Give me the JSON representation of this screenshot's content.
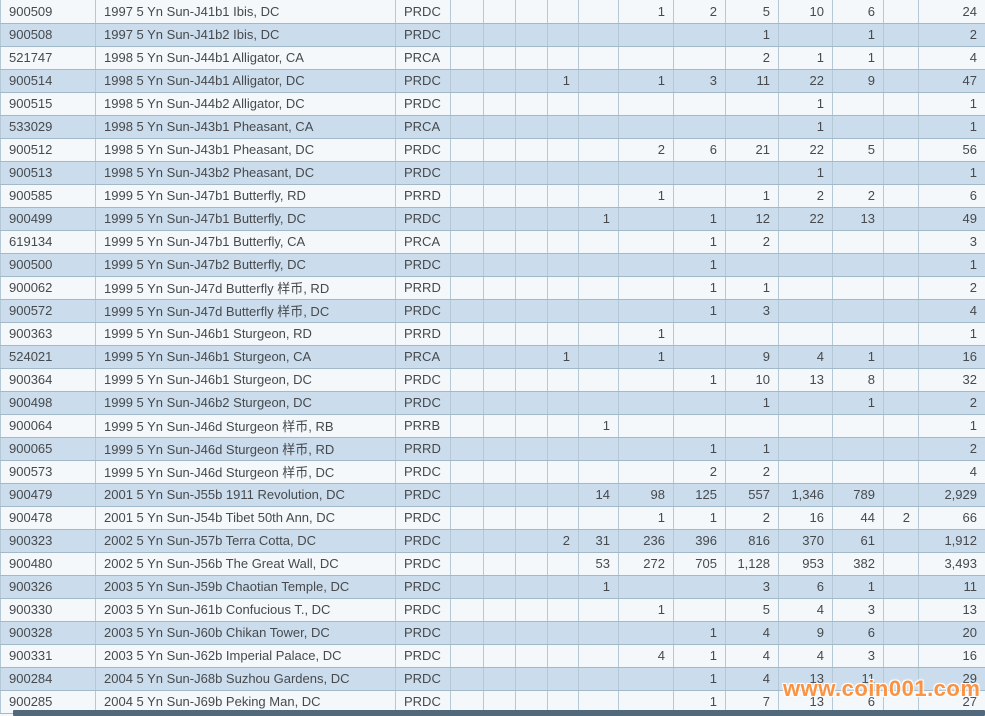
{
  "watermark": "www.coin001.com",
  "colors": {
    "row_light": "#f4f8fb",
    "row_alternate": "#cbdded",
    "grid_vertical": "#b5c8d6",
    "grid_horizontal": "#a2b9c9",
    "id_link_text": "#ad6c44",
    "body_text": "#47494c",
    "watermark_orange": "#ff8c33",
    "scrollbar_dark": "#52697b"
  },
  "table": {
    "column_count_cells_per_row": 12,
    "rows": [
      {
        "id": "900509",
        "description": "1997 5 Yn Sun-J41b1 Ibis, DC",
        "code": "PRDC",
        "values": [
          "",
          "",
          "",
          "",
          "",
          "1",
          "2",
          "5",
          "10",
          "6",
          "",
          "24"
        ]
      },
      {
        "id": "900508",
        "description": "1997 5 Yn Sun-J41b2 Ibis, DC",
        "code": "PRDC",
        "values": [
          "",
          "",
          "",
          "",
          "",
          "",
          "",
          "1",
          "",
          "1",
          "",
          "2"
        ]
      },
      {
        "id": "521747",
        "description": "1998 5 Yn Sun-J44b1 Alligator, CA",
        "code": "PRCA",
        "values": [
          "",
          "",
          "",
          "",
          "",
          "",
          "",
          "2",
          "1",
          "1",
          "",
          "4"
        ]
      },
      {
        "id": "900514",
        "description": "1998 5 Yn Sun-J44b1 Alligator, DC",
        "code": "PRDC",
        "values": [
          "",
          "",
          "",
          "1",
          "",
          "1",
          "3",
          "11",
          "22",
          "9",
          "",
          "47"
        ]
      },
      {
        "id": "900515",
        "description": "1998 5 Yn Sun-J44b2 Alligator, DC",
        "code": "PRDC",
        "values": [
          "",
          "",
          "",
          "",
          "",
          "",
          "",
          "",
          "1",
          "",
          "",
          "1"
        ]
      },
      {
        "id": "533029",
        "description": "1998 5 Yn Sun-J43b1 Pheasant, CA",
        "code": "PRCA",
        "values": [
          "",
          "",
          "",
          "",
          "",
          "",
          "",
          "",
          "1",
          "",
          "",
          "1"
        ]
      },
      {
        "id": "900512",
        "description": "1998 5 Yn Sun-J43b1 Pheasant, DC",
        "code": "PRDC",
        "values": [
          "",
          "",
          "",
          "",
          "",
          "2",
          "6",
          "21",
          "22",
          "5",
          "",
          "56"
        ]
      },
      {
        "id": "900513",
        "description": "1998 5 Yn Sun-J43b2 Pheasant, DC",
        "code": "PRDC",
        "values": [
          "",
          "",
          "",
          "",
          "",
          "",
          "",
          "",
          "1",
          "",
          "",
          "1"
        ]
      },
      {
        "id": "900585",
        "description": "1999 5 Yn Sun-J47b1 Butterfly, RD",
        "code": "PRRD",
        "values": [
          "",
          "",
          "",
          "",
          "",
          "1",
          "",
          "1",
          "2",
          "2",
          "",
          "6"
        ]
      },
      {
        "id": "900499",
        "description": "1999 5 Yn Sun-J47b1 Butterfly, DC",
        "code": "PRDC",
        "values": [
          "",
          "",
          "",
          "",
          "1",
          "",
          "1",
          "12",
          "22",
          "13",
          "",
          "49"
        ]
      },
      {
        "id": "619134",
        "description": "1999 5 Yn Sun-J47b1 Butterfly, CA",
        "code": "PRCA",
        "values": [
          "",
          "",
          "",
          "",
          "",
          "",
          "1",
          "2",
          "",
          "",
          "",
          "3"
        ]
      },
      {
        "id": "900500",
        "description": "1999 5 Yn Sun-J47b2 Butterfly, DC",
        "code": "PRDC",
        "values": [
          "",
          "",
          "",
          "",
          "",
          "",
          "1",
          "",
          "",
          "",
          "",
          "1"
        ]
      },
      {
        "id": "900062",
        "description": "1999 5 Yn Sun-J47d Butterfly 样币, RD",
        "code": "PRRD",
        "values": [
          "",
          "",
          "",
          "",
          "",
          "",
          "1",
          "1",
          "",
          "",
          "",
          "2"
        ]
      },
      {
        "id": "900572",
        "description": "1999 5 Yn Sun-J47d Butterfly 样币, DC",
        "code": "PRDC",
        "values": [
          "",
          "",
          "",
          "",
          "",
          "",
          "1",
          "3",
          "",
          "",
          "",
          "4"
        ]
      },
      {
        "id": "900363",
        "description": "1999 5 Yn Sun-J46b1 Sturgeon, RD",
        "code": "PRRD",
        "values": [
          "",
          "",
          "",
          "",
          "",
          "1",
          "",
          "",
          "",
          "",
          "",
          "1"
        ]
      },
      {
        "id": "524021",
        "description": "1999 5 Yn Sun-J46b1 Sturgeon, CA",
        "code": "PRCA",
        "values": [
          "",
          "",
          "",
          "1",
          "",
          "1",
          "",
          "9",
          "4",
          "1",
          "",
          "16"
        ]
      },
      {
        "id": "900364",
        "description": "1999 5 Yn Sun-J46b1 Sturgeon, DC",
        "code": "PRDC",
        "values": [
          "",
          "",
          "",
          "",
          "",
          "",
          "1",
          "10",
          "13",
          "8",
          "",
          "32"
        ]
      },
      {
        "id": "900498",
        "description": "1999 5 Yn Sun-J46b2 Sturgeon, DC",
        "code": "PRDC",
        "values": [
          "",
          "",
          "",
          "",
          "",
          "",
          "",
          "1",
          "",
          "1",
          "",
          "2"
        ]
      },
      {
        "id": "900064",
        "description": "1999 5 Yn Sun-J46d Sturgeon 样币, RB",
        "code": "PRRB",
        "values": [
          "",
          "",
          "",
          "",
          "1",
          "",
          "",
          "",
          "",
          "",
          "",
          "1"
        ]
      },
      {
        "id": "900065",
        "description": "1999 5 Yn Sun-J46d Sturgeon 样币, RD",
        "code": "PRRD",
        "values": [
          "",
          "",
          "",
          "",
          "",
          "",
          "1",
          "1",
          "",
          "",
          "",
          "2"
        ]
      },
      {
        "id": "900573",
        "description": "1999 5 Yn Sun-J46d Sturgeon 样币, DC",
        "code": "PRDC",
        "values": [
          "",
          "",
          "",
          "",
          "",
          "",
          "2",
          "2",
          "",
          "",
          "",
          "4"
        ]
      },
      {
        "id": "900479",
        "description": "2001 5 Yn Sun-J55b 1911 Revolution, DC",
        "code": "PRDC",
        "values": [
          "",
          "",
          "",
          "",
          "14",
          "98",
          "125",
          "557",
          "1,346",
          "789",
          "",
          "2,929"
        ]
      },
      {
        "id": "900478",
        "description": "2001 5 Yn Sun-J54b Tibet 50th Ann, DC",
        "code": "PRDC",
        "values": [
          "",
          "",
          "",
          "",
          "",
          "1",
          "1",
          "2",
          "16",
          "44",
          "2",
          "66"
        ]
      },
      {
        "id": "900323",
        "description": "2002 5 Yn Sun-J57b Terra Cotta, DC",
        "code": "PRDC",
        "values": [
          "",
          "",
          "",
          "2",
          "31",
          "236",
          "396",
          "816",
          "370",
          "61",
          "",
          "1,912"
        ]
      },
      {
        "id": "900480",
        "description": "2002 5 Yn Sun-J56b The Great Wall, DC",
        "code": "PRDC",
        "values": [
          "",
          "",
          "",
          "",
          "53",
          "272",
          "705",
          "1,128",
          "953",
          "382",
          "",
          "3,493"
        ]
      },
      {
        "id": "900326",
        "description": "2003 5 Yn Sun-J59b Chaotian Temple, DC",
        "code": "PRDC",
        "values": [
          "",
          "",
          "",
          "",
          "1",
          "",
          "",
          "3",
          "6",
          "1",
          "",
          "11"
        ]
      },
      {
        "id": "900330",
        "description": "2003 5 Yn Sun-J61b Confucious T., DC",
        "code": "PRDC",
        "values": [
          "",
          "",
          "",
          "",
          "",
          "1",
          "",
          "5",
          "4",
          "3",
          "",
          "13"
        ]
      },
      {
        "id": "900328",
        "description": "2003 5 Yn Sun-J60b Chikan Tower, DC",
        "code": "PRDC",
        "values": [
          "",
          "",
          "",
          "",
          "",
          "",
          "1",
          "4",
          "9",
          "6",
          "",
          "20"
        ]
      },
      {
        "id": "900331",
        "description": "2003 5 Yn Sun-J62b Imperial Palace, DC",
        "code": "PRDC",
        "values": [
          "",
          "",
          "",
          "",
          "",
          "4",
          "1",
          "4",
          "4",
          "3",
          "",
          "16"
        ]
      },
      {
        "id": "900284",
        "description": "2004 5 Yn Sun-J68b Suzhou Gardens, DC",
        "code": "PRDC",
        "values": [
          "",
          "",
          "",
          "",
          "",
          "",
          "1",
          "4",
          "13",
          "11",
          "",
          "29"
        ]
      },
      {
        "id": "900285",
        "description": "2004 5 Yn Sun-J69b Peking Man, DC",
        "code": "PRDC",
        "values": [
          "",
          "",
          "",
          "",
          "",
          "",
          "1",
          "7",
          "13",
          "6",
          "",
          "27"
        ]
      }
    ]
  }
}
